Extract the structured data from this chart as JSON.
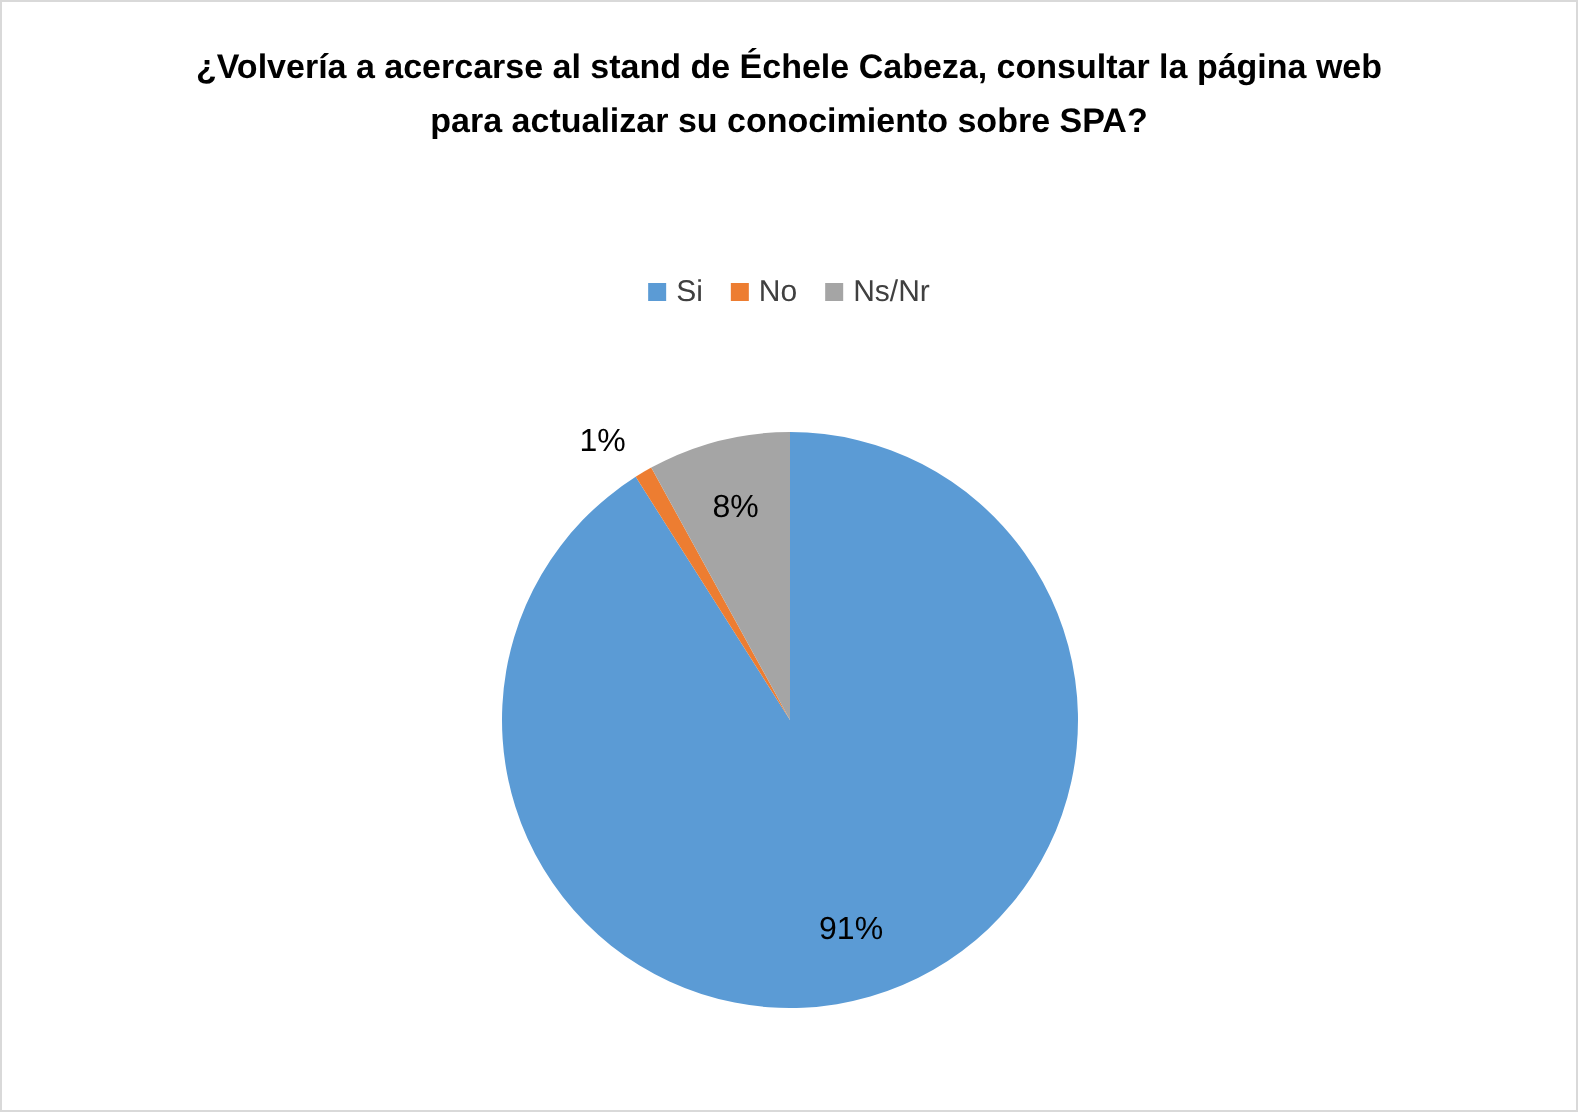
{
  "chart_data": {
    "type": "pie",
    "title": "¿Volvería a acercarse al stand de Échele Cabeza, consultar la página web para actualizar su conocimiento sobre SPA?",
    "categories": [
      "Si",
      "No",
      "Ns/Nr"
    ],
    "values": [
      91,
      1,
      8
    ],
    "colors": [
      "#5b9bd5",
      "#ed7d31",
      "#a5a5a5"
    ],
    "value_labels": [
      "91%",
      "1%",
      "8%"
    ],
    "legend": "top"
  }
}
